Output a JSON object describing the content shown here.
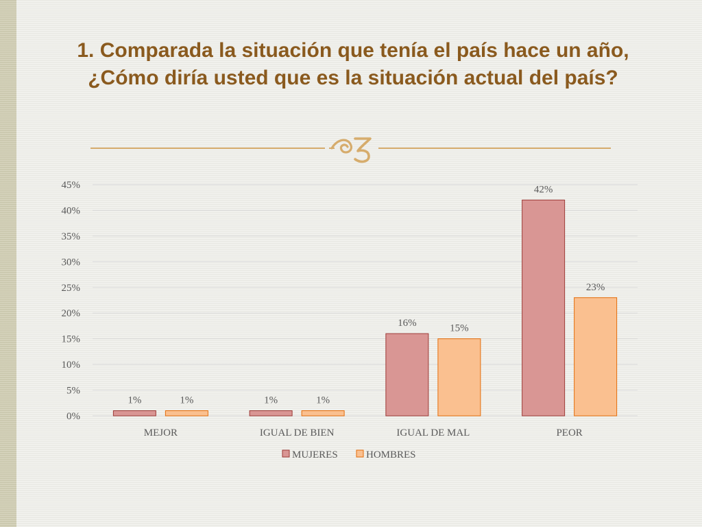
{
  "slide": {
    "title": "1. Comparada la situación que tenía el país hace un año, ¿Cómo diría usted que es la situación actual del país?",
    "flourish_icon": "flourish-ornament-icon"
  },
  "colors": {
    "title": "#8a5a1e",
    "divider": "#d6ac6c",
    "mujeres_fill": "#d99694",
    "mujeres_stroke": "#9c3a36",
    "hombres_fill": "#fac090",
    "hombres_stroke": "#e46c0a",
    "gridline": "#d9d9d9",
    "text": "#595959"
  },
  "chart_data": {
    "type": "bar",
    "title": "",
    "xlabel": "",
    "ylabel": "",
    "categories": [
      "MEJOR",
      "IGUAL DE BIEN",
      "IGUAL DE MAL",
      "PEOR"
    ],
    "series": [
      {
        "name": "MUJERES",
        "values": [
          1,
          1,
          16,
          42
        ],
        "labels": [
          "1%",
          "1%",
          "16%",
          "42%"
        ]
      },
      {
        "name": "HOMBRES",
        "values": [
          1,
          1,
          15,
          23
        ],
        "labels": [
          "1%",
          "1%",
          "15%",
          "23%"
        ]
      }
    ],
    "ylim": [
      0,
      45
    ],
    "yticks": [
      0,
      5,
      10,
      15,
      20,
      25,
      30,
      35,
      40,
      45
    ],
    "ytick_labels": [
      "0%",
      "5%",
      "10%",
      "15%",
      "20%",
      "25%",
      "30%",
      "35%",
      "40%",
      "45%"
    ],
    "grid": true,
    "legend_position": "bottom"
  }
}
